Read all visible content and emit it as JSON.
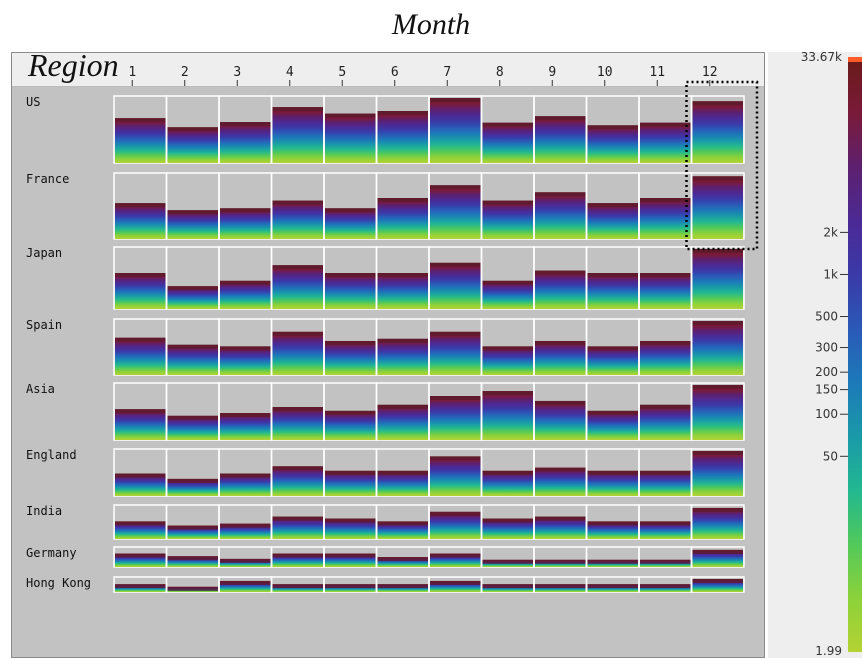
{
  "page": {
    "title": "Month",
    "row_header": "Region"
  },
  "chart_data": {
    "type": "heatmap",
    "title": "Month",
    "row_axis_label": "Region",
    "columns": [
      "1",
      "2",
      "3",
      "4",
      "5",
      "6",
      "7",
      "8",
      "9",
      "10",
      "11",
      "12"
    ],
    "rows": [
      "US",
      "France",
      "Japan",
      "Spain",
      "Asia",
      "England",
      "India",
      "Germany",
      "Hong Kong"
    ],
    "values": [
      [
        0.69,
        0.55,
        0.63,
        0.86,
        0.76,
        0.8,
        1.0,
        0.62,
        0.72,
        0.58,
        0.62,
        0.95
      ],
      [
        0.56,
        0.45,
        0.48,
        0.6,
        0.48,
        0.64,
        0.84,
        0.6,
        0.73,
        0.56,
        0.64,
        0.98
      ],
      [
        0.6,
        0.38,
        0.47,
        0.73,
        0.6,
        0.6,
        0.77,
        0.47,
        0.64,
        0.6,
        0.6,
        1.0
      ],
      [
        0.69,
        0.56,
        0.53,
        0.8,
        0.63,
        0.67,
        0.8,
        0.53,
        0.63,
        0.53,
        0.63,
        1.0
      ],
      [
        0.56,
        0.44,
        0.49,
        0.6,
        0.53,
        0.64,
        0.8,
        0.89,
        0.71,
        0.53,
        0.64,
        1.0
      ],
      [
        0.5,
        0.38,
        0.5,
        0.66,
        0.56,
        0.56,
        0.88,
        0.56,
        0.63,
        0.56,
        0.56,
        1.0
      ],
      [
        0.55,
        0.42,
        0.48,
        0.7,
        0.64,
        0.55,
        0.85,
        0.64,
        0.7,
        0.55,
        0.55,
        0.97
      ],
      [
        0.75,
        0.6,
        0.45,
        0.75,
        0.75,
        0.55,
        0.75,
        0.4,
        0.4,
        0.4,
        0.4,
        0.95
      ],
      [
        0.6,
        0.4,
        0.85,
        0.6,
        0.6,
        0.6,
        0.85,
        0.6,
        0.6,
        0.6,
        0.6,
        1.0
      ]
    ],
    "highlighted_cells": [
      {
        "row": "US",
        "column": "12"
      },
      {
        "row": "France",
        "column": "12"
      }
    ],
    "legend": {
      "scale": "log",
      "max_label": "33.67k",
      "min_label": "1.99",
      "ticks": [
        {
          "label": "2k",
          "value": 2000
        },
        {
          "label": "1k",
          "value": 1000
        },
        {
          "label": "500",
          "value": 500
        },
        {
          "label": "300",
          "value": 300
        },
        {
          "label": "200",
          "value": 200
        },
        {
          "label": "150",
          "value": 150
        },
        {
          "label": "100",
          "value": 100
        },
        {
          "label": "50",
          "value": 50
        }
      ],
      "colors": [
        "#b4d233",
        "#8cd23a",
        "#52c95a",
        "#22b890",
        "#1a9aa8",
        "#1c7ab8",
        "#2a5ab8",
        "#3a3aa8",
        "#4b2a95",
        "#5c2070",
        "#7a1a3a",
        "#6a1a1a"
      ],
      "top_marker_color": "#ff5a28"
    }
  }
}
